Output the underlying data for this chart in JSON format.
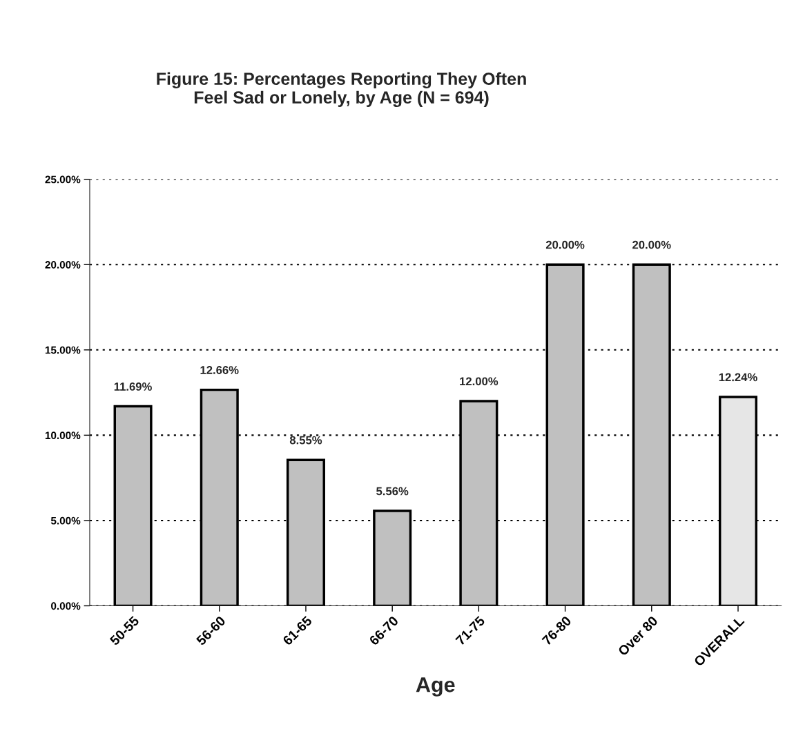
{
  "chart_data": {
    "type": "bar",
    "title": "Figure 15: Percentages Reporting They Often\nFeel Sad or Lonely, by Age (N = 694)",
    "xlabel": "Age",
    "categories": [
      "50-55",
      "56-60",
      "61-65",
      "66-70",
      "71-75",
      "76-80",
      "Over 80",
      "OVERALL"
    ],
    "values": [
      11.69,
      12.66,
      8.55,
      5.56,
      12.0,
      20.0,
      20.0,
      12.24
    ],
    "value_labels": [
      "11.69%",
      "12.66%",
      "8.55%",
      "5.56%",
      "12.00%",
      "20.00%",
      "20.00%",
      "12.24%"
    ],
    "colors": [
      "#c0c0c0",
      "#c0c0c0",
      "#c0c0c0",
      "#c0c0c0",
      "#c0c0c0",
      "#c0c0c0",
      "#c0c0c0",
      "#e6e6e6"
    ],
    "ylim": [
      0,
      25
    ],
    "yticks": [
      {
        "value": 0,
        "label": "0.00%"
      },
      {
        "value": 5,
        "label": "5.00%"
      },
      {
        "value": 10,
        "label": "10.00%"
      },
      {
        "value": 15,
        "label": "15.00%"
      },
      {
        "value": 20,
        "label": "20.00%"
      },
      {
        "value": 25,
        "label": "25.00%"
      }
    ],
    "grid": "y",
    "legend": false
  }
}
